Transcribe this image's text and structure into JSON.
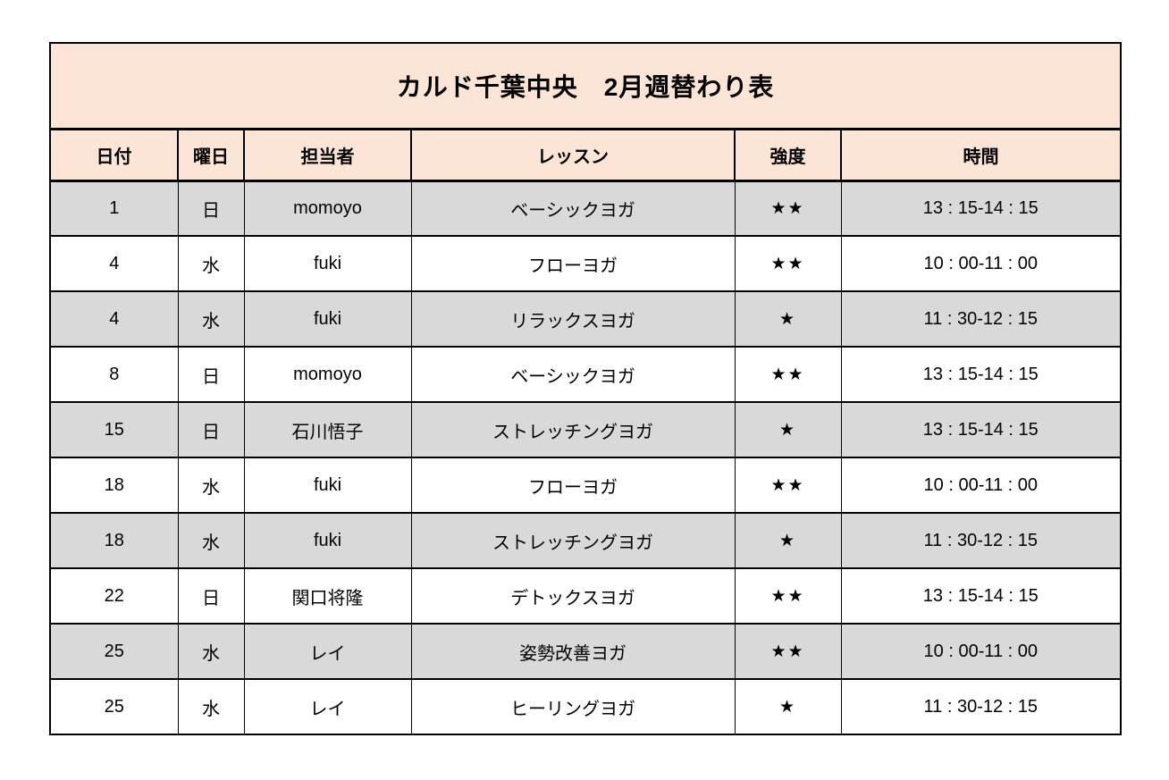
{
  "table": {
    "title": "カルド千葉中央　2月週替わり表",
    "columns": [
      "日付",
      "曜日",
      "担当者",
      "レッスン",
      "強度",
      "時間"
    ],
    "rows": [
      {
        "date": "1",
        "day": "日",
        "staff": "momoyo",
        "lesson": "ベーシックヨガ",
        "level": "★★",
        "time": "13 : 15-14 : 15"
      },
      {
        "date": "4",
        "day": "水",
        "staff": "fuki",
        "lesson": "フローヨガ",
        "level": "★★",
        "time": "10 : 00-11 : 00"
      },
      {
        "date": "4",
        "day": "水",
        "staff": "fuki",
        "lesson": "リラックスヨガ",
        "level": "★",
        "time": "11 : 30-12 : 15"
      },
      {
        "date": "8",
        "day": "日",
        "staff": "momoyo",
        "lesson": "ベーシックヨガ",
        "level": "★★",
        "time": "13 : 15-14 : 15"
      },
      {
        "date": "15",
        "day": "日",
        "staff": "石川悟子",
        "lesson": "ストレッチングヨガ",
        "level": "★",
        "time": "13 : 15-14 : 15"
      },
      {
        "date": "18",
        "day": "水",
        "staff": "fuki",
        "lesson": "フローヨガ",
        "level": "★★",
        "time": "10 : 00-11 : 00"
      },
      {
        "date": "18",
        "day": "水",
        "staff": "fuki",
        "lesson": "ストレッチングヨガ",
        "level": "★",
        "time": "11 : 30-12 : 15"
      },
      {
        "date": "22",
        "day": "日",
        "staff": "関口将隆",
        "lesson": "デトックスヨガ",
        "level": "★★",
        "time": "13 : 15-14 : 15"
      },
      {
        "date": "25",
        "day": "水",
        "staff": "レイ",
        "lesson": "姿勢改善ヨガ",
        "level": "★★",
        "time": "10 : 00-11 : 00"
      },
      {
        "date": "25",
        "day": "水",
        "staff": "レイ",
        "lesson": "ヒーリングヨガ",
        "level": "★",
        "time": "11 : 30-12 : 15"
      }
    ]
  },
  "colors": {
    "header_bg": "#FCE4D6",
    "row_alt_bg": "#D9D9D9",
    "row_bg": "#FFFFFF",
    "border": "#000000",
    "text": "#000000"
  }
}
